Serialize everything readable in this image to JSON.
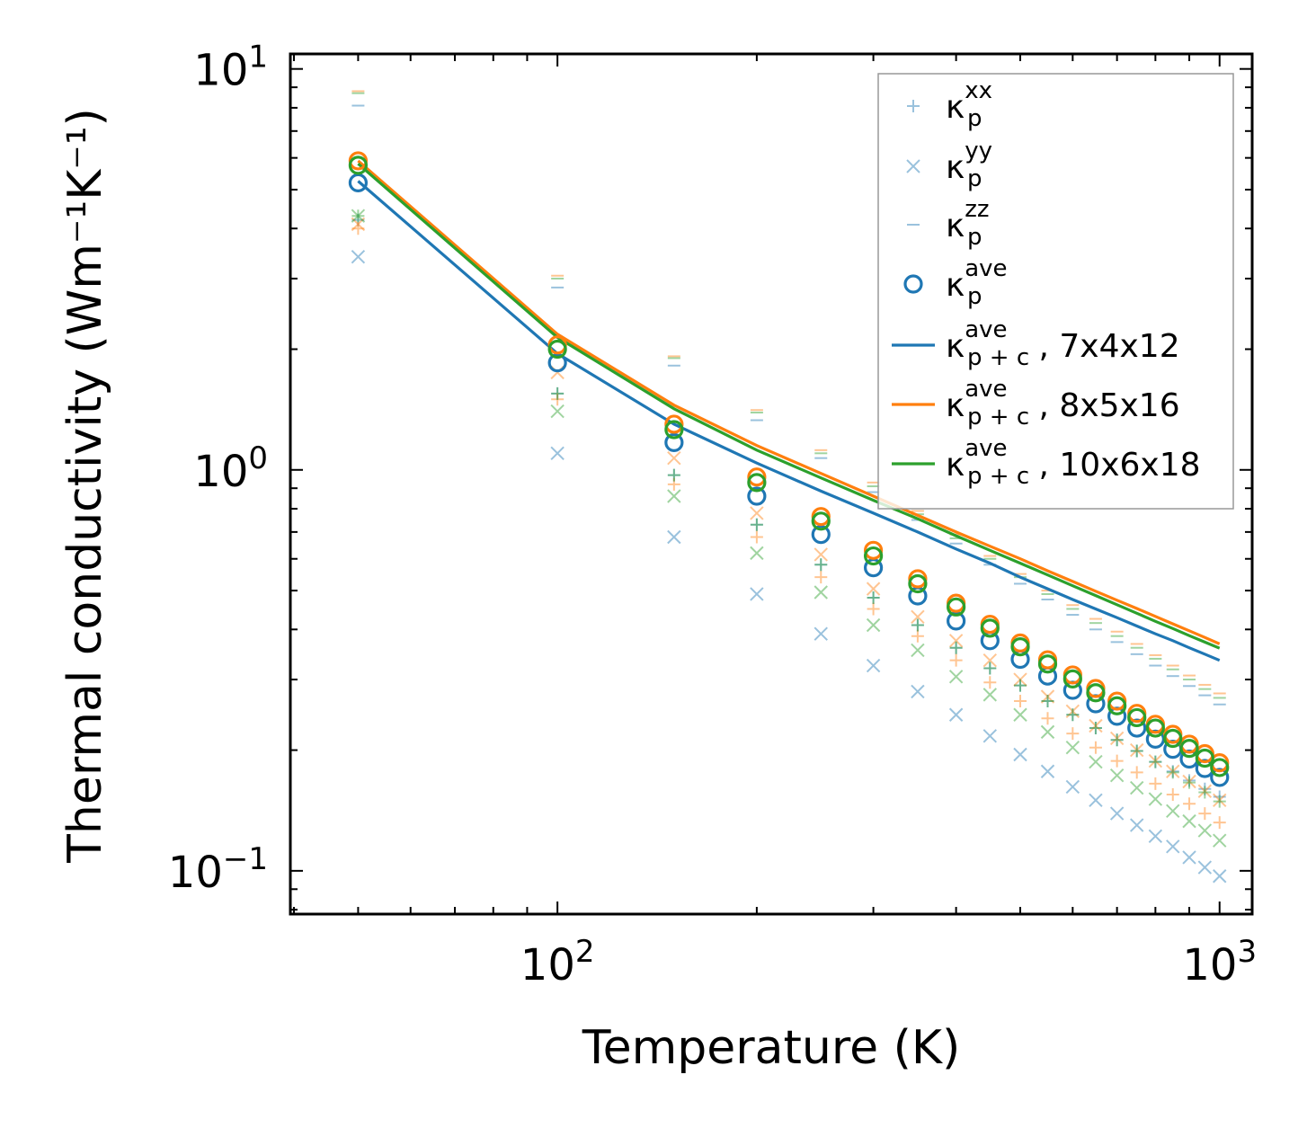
{
  "chart_data": {
    "type": "scatter",
    "title": "",
    "xlabel": "Temperature (K)",
    "ylabel": "Thermal conductivity (Wm⁻¹K⁻¹)",
    "xscale": "log",
    "yscale": "log",
    "xlim": [
      39.5,
      1120
    ],
    "ylim": [
      0.078,
      10.9
    ],
    "xticks": [
      {
        "value": 100,
        "base": "10",
        "exp": "2"
      },
      {
        "value": 1000,
        "base": "10",
        "exp": "3"
      }
    ],
    "yticks": [
      {
        "value": 0.1,
        "base": "10",
        "exp": "−1"
      },
      {
        "value": 1,
        "base": "10",
        "exp": "0"
      },
      {
        "value": 10,
        "base": "10",
        "exp": "1"
      }
    ],
    "x": [
      50,
      100,
      150,
      200,
      250,
      300,
      350,
      400,
      450,
      500,
      550,
      600,
      650,
      700,
      750,
      800,
      850,
      900,
      950,
      1000
    ],
    "colors": [
      "#1f77b4",
      "#ff7f0e",
      "#2ca02c"
    ],
    "meshes": [
      {
        "name": "7x4x12",
        "kxx": [
          4.2,
          1.55,
          0.97,
          0.73,
          0.58,
          0.48,
          0.41,
          0.36,
          0.32,
          0.29,
          0.265,
          0.245,
          0.227,
          0.212,
          0.199,
          0.187,
          0.177,
          0.168,
          0.16,
          0.153
        ],
        "kyy": [
          3.4,
          1.1,
          0.68,
          0.49,
          0.39,
          0.325,
          0.28,
          0.245,
          0.217,
          0.195,
          0.177,
          0.162,
          0.15,
          0.139,
          0.13,
          0.122,
          0.115,
          0.108,
          0.102,
          0.097
        ],
        "kzz": [
          8.1,
          2.85,
          1.82,
          1.33,
          1.07,
          0.88,
          0.75,
          0.655,
          0.58,
          0.52,
          0.475,
          0.435,
          0.4,
          0.372,
          0.347,
          0.325,
          0.306,
          0.289,
          0.274,
          0.26
        ],
        "kave": [
          5.2,
          1.85,
          1.17,
          0.86,
          0.69,
          0.57,
          0.485,
          0.42,
          0.375,
          0.337,
          0.306,
          0.282,
          0.261,
          0.243,
          0.227,
          0.213,
          0.201,
          0.19,
          0.18,
          0.171
        ],
        "kpc": [
          5.25,
          1.95,
          1.3,
          1.04,
          0.885,
          0.78,
          0.7,
          0.635,
          0.585,
          0.54,
          0.505,
          0.475,
          0.45,
          0.428,
          0.408,
          0.39,
          0.375,
          0.36,
          0.347,
          0.335
        ]
      },
      {
        "name": "8x5x16",
        "kxx": [
          4.0,
          1.5,
          0.92,
          0.68,
          0.54,
          0.45,
          0.385,
          0.335,
          0.295,
          0.265,
          0.24,
          0.22,
          0.203,
          0.188,
          0.176,
          0.165,
          0.155,
          0.147,
          0.139,
          0.132
        ],
        "kyy": [
          4.1,
          1.75,
          1.07,
          0.78,
          0.615,
          0.505,
          0.43,
          0.375,
          0.335,
          0.3,
          0.272,
          0.25,
          0.23,
          0.214,
          0.2,
          0.188,
          0.177,
          0.167,
          0.158,
          0.15
        ],
        "kzz": [
          8.8,
          3.05,
          1.92,
          1.41,
          1.12,
          0.93,
          0.79,
          0.69,
          0.61,
          0.55,
          0.5,
          0.46,
          0.425,
          0.395,
          0.368,
          0.345,
          0.325,
          0.307,
          0.291,
          0.277
        ],
        "kave": [
          5.9,
          2.05,
          1.3,
          0.96,
          0.765,
          0.63,
          0.535,
          0.465,
          0.412,
          0.37,
          0.336,
          0.308,
          0.285,
          0.265,
          0.247,
          0.232,
          0.219,
          0.207,
          0.196,
          0.186
        ],
        "kpc": [
          5.9,
          2.18,
          1.45,
          1.15,
          0.98,
          0.86,
          0.77,
          0.7,
          0.645,
          0.6,
          0.56,
          0.527,
          0.498,
          0.473,
          0.451,
          0.431,
          0.413,
          0.397,
          0.382,
          0.368
        ]
      },
      {
        "name": "10x6x18",
        "kxx": [
          4.3,
          1.55,
          0.97,
          0.73,
          0.58,
          0.48,
          0.41,
          0.36,
          0.32,
          0.29,
          0.265,
          0.245,
          0.227,
          0.212,
          0.199,
          0.187,
          0.176,
          0.166,
          0.157,
          0.149
        ],
        "kyy": [
          4.3,
          1.4,
          0.86,
          0.62,
          0.495,
          0.41,
          0.355,
          0.305,
          0.275,
          0.245,
          0.222,
          0.203,
          0.187,
          0.173,
          0.161,
          0.151,
          0.141,
          0.133,
          0.126,
          0.119
        ],
        "kzz": [
          8.7,
          3.0,
          1.9,
          1.39,
          1.1,
          0.91,
          0.775,
          0.675,
          0.6,
          0.54,
          0.49,
          0.45,
          0.415,
          0.385,
          0.36,
          0.338,
          0.318,
          0.3,
          0.284,
          0.27
        ],
        "kave": [
          5.75,
          2.0,
          1.26,
          0.93,
          0.745,
          0.61,
          0.52,
          0.455,
          0.403,
          0.362,
          0.328,
          0.301,
          0.278,
          0.258,
          0.241,
          0.227,
          0.214,
          0.202,
          0.191,
          0.181
        ],
        "kpc": [
          5.8,
          2.14,
          1.42,
          1.12,
          0.955,
          0.84,
          0.755,
          0.685,
          0.63,
          0.585,
          0.547,
          0.514,
          0.486,
          0.461,
          0.439,
          0.419,
          0.402,
          0.386,
          0.372,
          0.359
        ]
      }
    ],
    "legend": {
      "placement": "top-right",
      "entries": [
        {
          "kind": "plus",
          "base": "κ",
          "sup": "xx",
          "sub": "p",
          "suffix": ""
        },
        {
          "kind": "cross",
          "base": "κ",
          "sup": "yy",
          "sub": "p",
          "suffix": ""
        },
        {
          "kind": "dash",
          "base": "κ",
          "sup": "zz",
          "sub": "p",
          "suffix": ""
        },
        {
          "kind": "circle",
          "base": "κ",
          "sup": "ave",
          "sub": "p",
          "suffix": ""
        },
        {
          "kind": "line",
          "base": "κ",
          "sup": "ave",
          "sub": "p + c",
          "suffix": ", 7x4x12"
        },
        {
          "kind": "line",
          "base": "κ",
          "sup": "ave",
          "sub": "p + c",
          "suffix": ", 8x5x16"
        },
        {
          "kind": "line",
          "base": "κ",
          "sup": "ave",
          "sub": "p + c",
          "suffix": ", 10x6x18"
        }
      ]
    }
  }
}
